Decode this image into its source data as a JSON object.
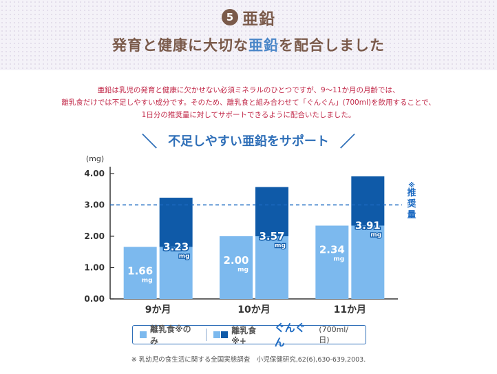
{
  "header": {
    "number": "5",
    "title": "亜鉛",
    "headline_a": "発育と健康に大切な",
    "headline_hl": "亜鉛",
    "headline_b": "を配合しました"
  },
  "description": [
    "亜鉛は乳児の発育と健康に欠かせない必須ミネラルのひとつですが、9～11か月の月齢では、",
    "離乳食だけでは不足しやすい成分です。そのため、離乳食と組み合わせて「ぐんぐん」(700ml)を飲用することで、",
    "1日分の推奨量に対してサポートできるように配合いたしました。"
  ],
  "chart_heading": "不足しやすい亜鉛をサポート",
  "colors": {
    "light": "#7cb9ee",
    "dark": "#0f5aa8",
    "axis": "#333333",
    "ref": "#1c6ac2"
  },
  "chart_data": {
    "type": "bar",
    "ylabel": "(mg)",
    "ylim": [
      0,
      4
    ],
    "yticks": [
      "0.00",
      "1.00",
      "2.00",
      "3.00",
      "4.00"
    ],
    "categories": [
      "9か月",
      "10か月",
      "11か月"
    ],
    "series": [
      {
        "name": "離乳食※のみ",
        "values": [
          1.66,
          2.0,
          2.34
        ],
        "labels": [
          "1.66",
          "2.00",
          "2.34"
        ]
      },
      {
        "name": "離乳食※+ぐんぐん(700ml/日)",
        "values": [
          3.23,
          3.57,
          3.91
        ],
        "labels": [
          "3.23",
          "3.57",
          "3.91"
        ],
        "stacked_over": [
          1.66,
          2.0,
          2.34
        ]
      }
    ],
    "unit": "mg",
    "reference_line": {
      "value": 3.0,
      "label": "※推奨量"
    },
    "grid": false,
    "legend": "bottom"
  },
  "legend": {
    "item1": "離乳食※のみ",
    "item2_a": "離乳食※+",
    "item2_brand": "ぐんぐん",
    "item2_amount": "(700ml/日)"
  },
  "footnote": "※ 乳幼児の食生活に関する全国実態調査　小児保健研究,62(6),630-639,2003."
}
